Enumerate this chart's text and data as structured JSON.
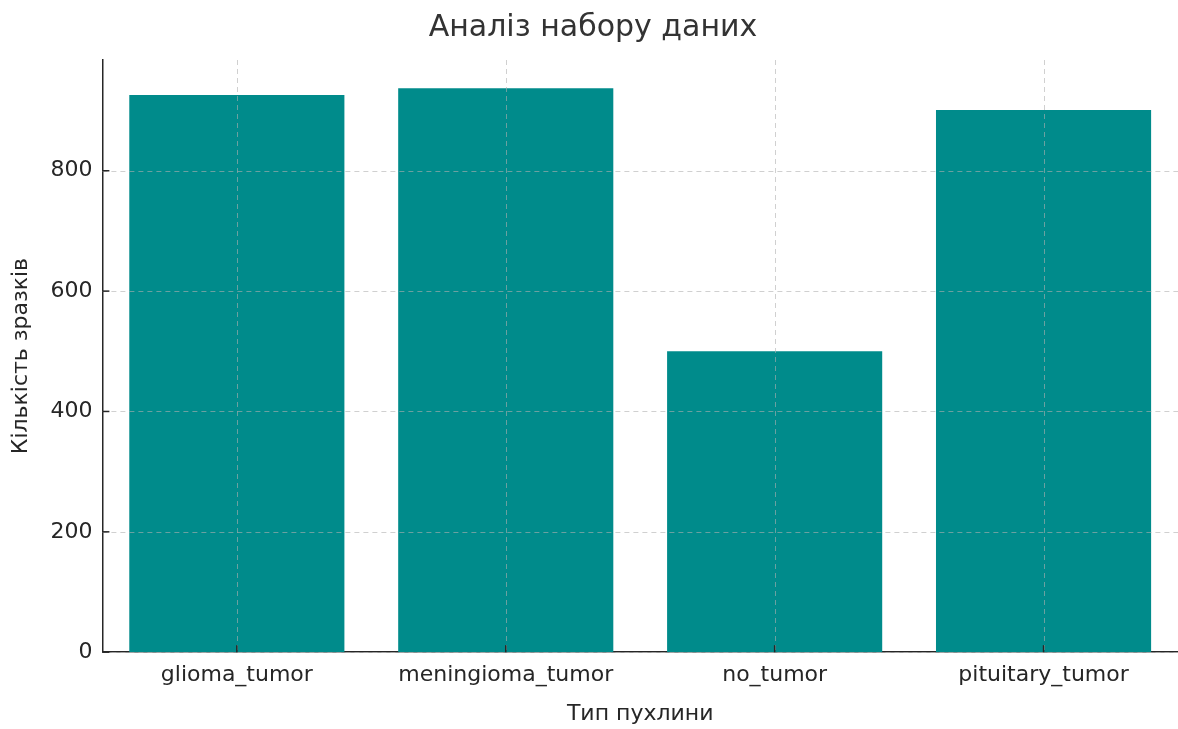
{
  "chart_data": {
    "type": "bar",
    "title": "Аналіз набору даних",
    "xlabel": "Тип пухлини",
    "ylabel": "Кількість зразків",
    "categories": [
      "glioma_tumor",
      "meningioma_tumor",
      "no_tumor",
      "pituitary_tumor"
    ],
    "values": [
      926,
      937,
      500,
      901
    ],
    "color": "#008b8b",
    "ylim": [
      0,
      984
    ],
    "yticks": [
      0,
      200,
      400,
      600,
      800
    ],
    "grid": true
  }
}
